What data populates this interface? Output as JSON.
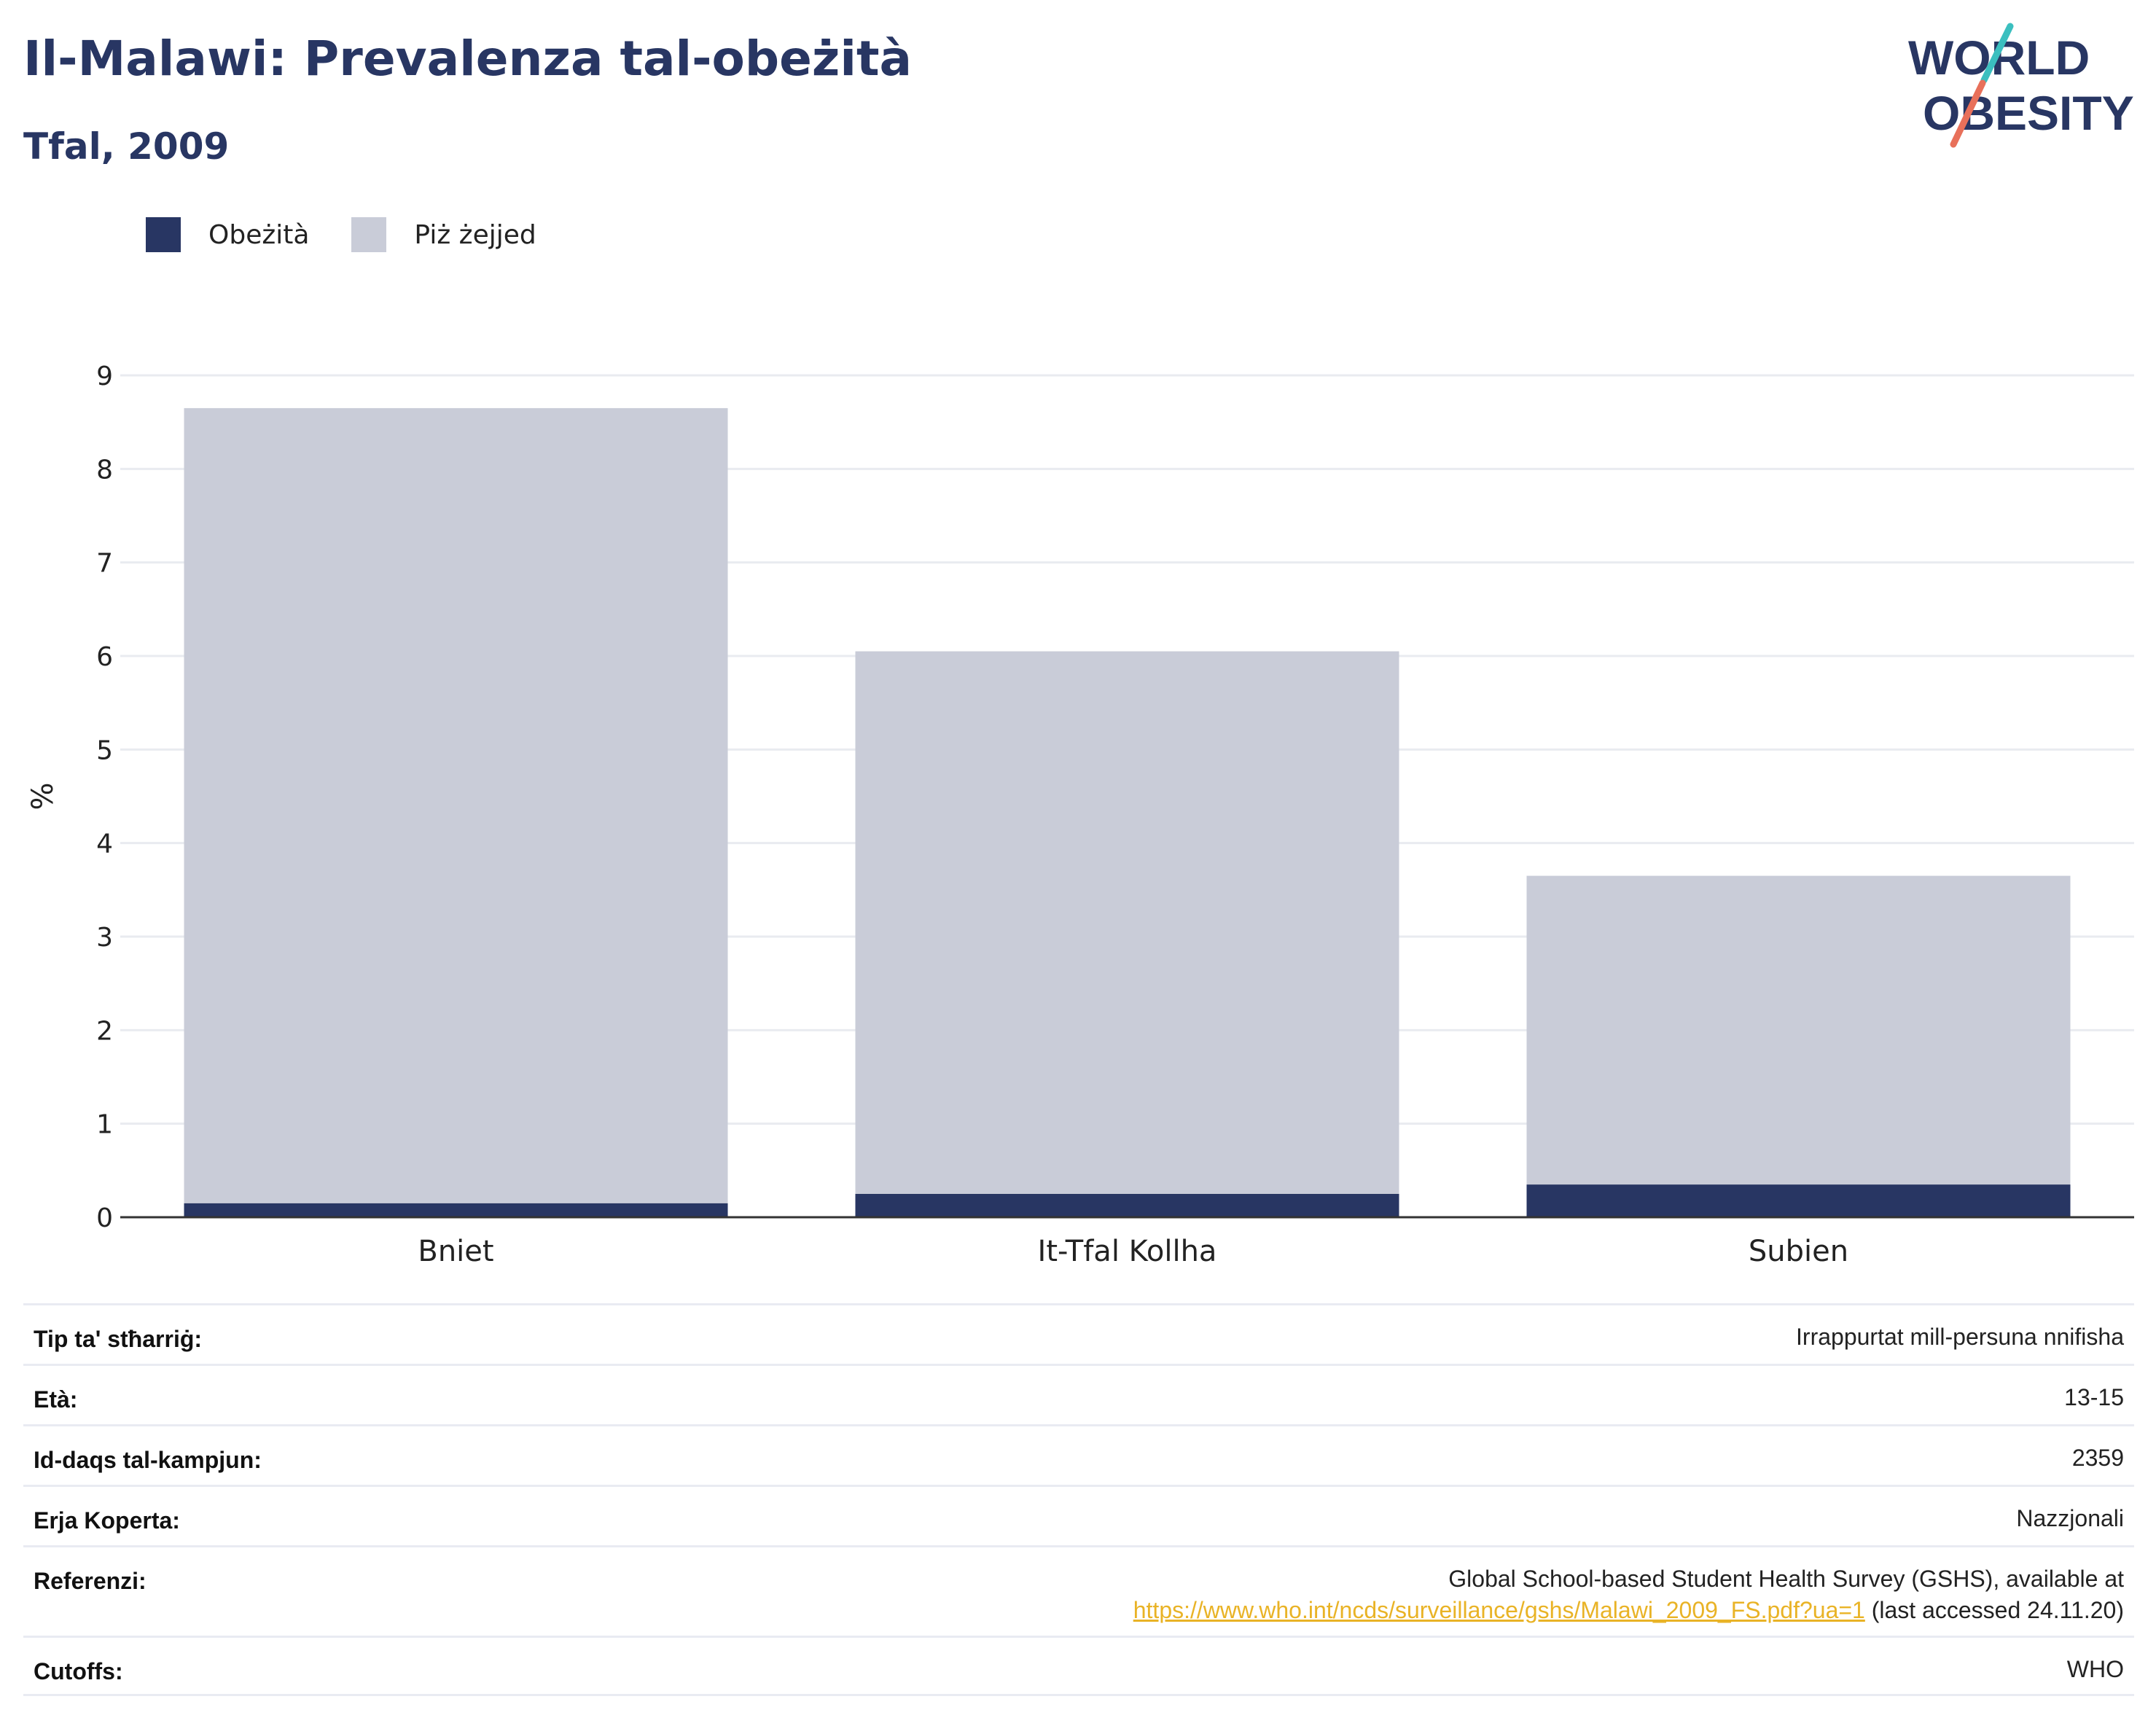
{
  "header": {
    "title": "Il-Malawi: Prevalenza tal-obeżità",
    "subtitle": "Tfal, 2009"
  },
  "logo": {
    "line1": "WORLD",
    "line2": "OBESITY",
    "accent_teal": "#3bbfbf",
    "accent_coral": "#e8705a",
    "text_color": "#283663"
  },
  "legend": [
    {
      "label": "Obeżità",
      "color": "#283663"
    },
    {
      "label": "Piż żejjed",
      "color": "#c9ccd8"
    }
  ],
  "chart_data": {
    "type": "bar",
    "stacked": true,
    "categories": [
      "Bniet",
      "It-Tfal Kollha",
      "Subien"
    ],
    "series": [
      {
        "name": "Obeżità",
        "values": [
          0.15,
          0.25,
          0.35
        ],
        "color": "#283663"
      },
      {
        "name": "Piż żejjed",
        "values": [
          8.5,
          5.8,
          3.3
        ],
        "color": "#c9ccd8"
      }
    ],
    "ylabel": "%",
    "ylim": [
      0,
      9
    ],
    "yticks": [
      "0",
      "1",
      "2",
      "3",
      "4",
      "5",
      "6",
      "7",
      "8",
      "9"
    ],
    "grid": true
  },
  "info": {
    "survey_type_label": "Tip ta' stħarriġ:",
    "survey_type_value": "Irrappurtat mill-persuna nnifisha",
    "age_label": "Età:",
    "age_value": "13-15",
    "sample_label": "Id-daqs tal-kampjun:",
    "sample_value": "2359",
    "area_label": "Erja Koperta:",
    "area_value": "Nazzjonali",
    "ref_label": "Referenzi:",
    "ref_text1": "Global School-based Student Health Survey (GSHS), available at",
    "ref_link": "https://www.who.int/ncds/surveillance/gshs/Malawi_2009_FS.pdf?ua=1",
    "ref_text2": " (last accessed 24.11.20)",
    "cutoffs_label": "Cutoffs:",
    "cutoffs_value": "WHO"
  }
}
